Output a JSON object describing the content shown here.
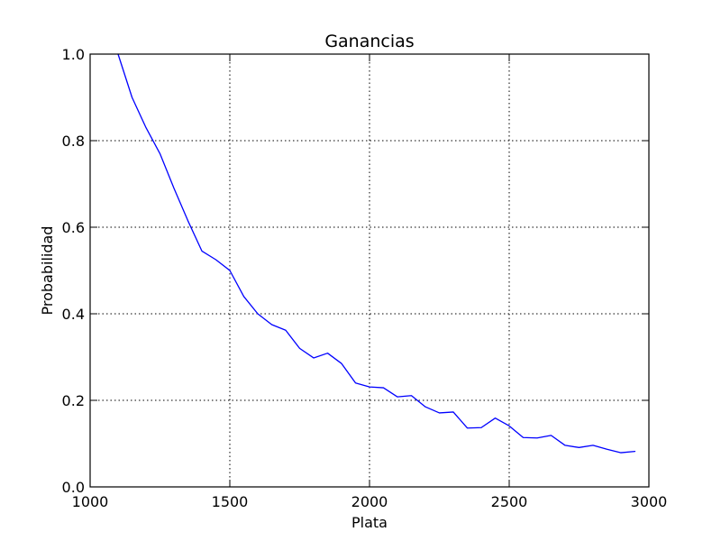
{
  "chart_data": {
    "type": "line",
    "title": "Ganancias",
    "xlabel": "Plata",
    "ylabel": "Probabilidad",
    "xlim": [
      1000,
      3000
    ],
    "ylim": [
      0.0,
      1.0
    ],
    "xticks": [
      1000,
      1500,
      2000,
      2500,
      3000
    ],
    "xtick_labels": [
      "1000",
      "1500",
      "2000",
      "2500",
      "3000"
    ],
    "yticks": [
      0.0,
      0.2,
      0.4,
      0.6,
      0.8,
      1.0
    ],
    "ytick_labels": [
      "0.0",
      "0.2",
      "0.4",
      "0.6",
      "0.8",
      "1.0"
    ],
    "grid": true,
    "legend": "none",
    "series": [
      {
        "color": "#0000ff",
        "x": [
          1100,
          1150,
          1200,
          1250,
          1300,
          1350,
          1400,
          1450,
          1500,
          1550,
          1600,
          1650,
          1700,
          1750,
          1800,
          1850,
          1900,
          1950,
          2000,
          2050,
          2100,
          2150,
          2200,
          2250,
          2300,
          2350,
          2400,
          2450,
          2500,
          2550,
          2600,
          2650,
          2700,
          2750,
          2800,
          2850,
          2900,
          2950
        ],
        "y": [
          1.0,
          0.9,
          0.83,
          0.77,
          0.69,
          0.615,
          0.545,
          0.525,
          0.5,
          0.44,
          0.4,
          0.375,
          0.362,
          0.32,
          0.298,
          0.309,
          0.285,
          0.24,
          0.231,
          0.229,
          0.208,
          0.211,
          0.185,
          0.171,
          0.173,
          0.136,
          0.137,
          0.159,
          0.141,
          0.114,
          0.113,
          0.119,
          0.096,
          0.091,
          0.096,
          0.087,
          0.079,
          0.082
        ]
      }
    ]
  }
}
